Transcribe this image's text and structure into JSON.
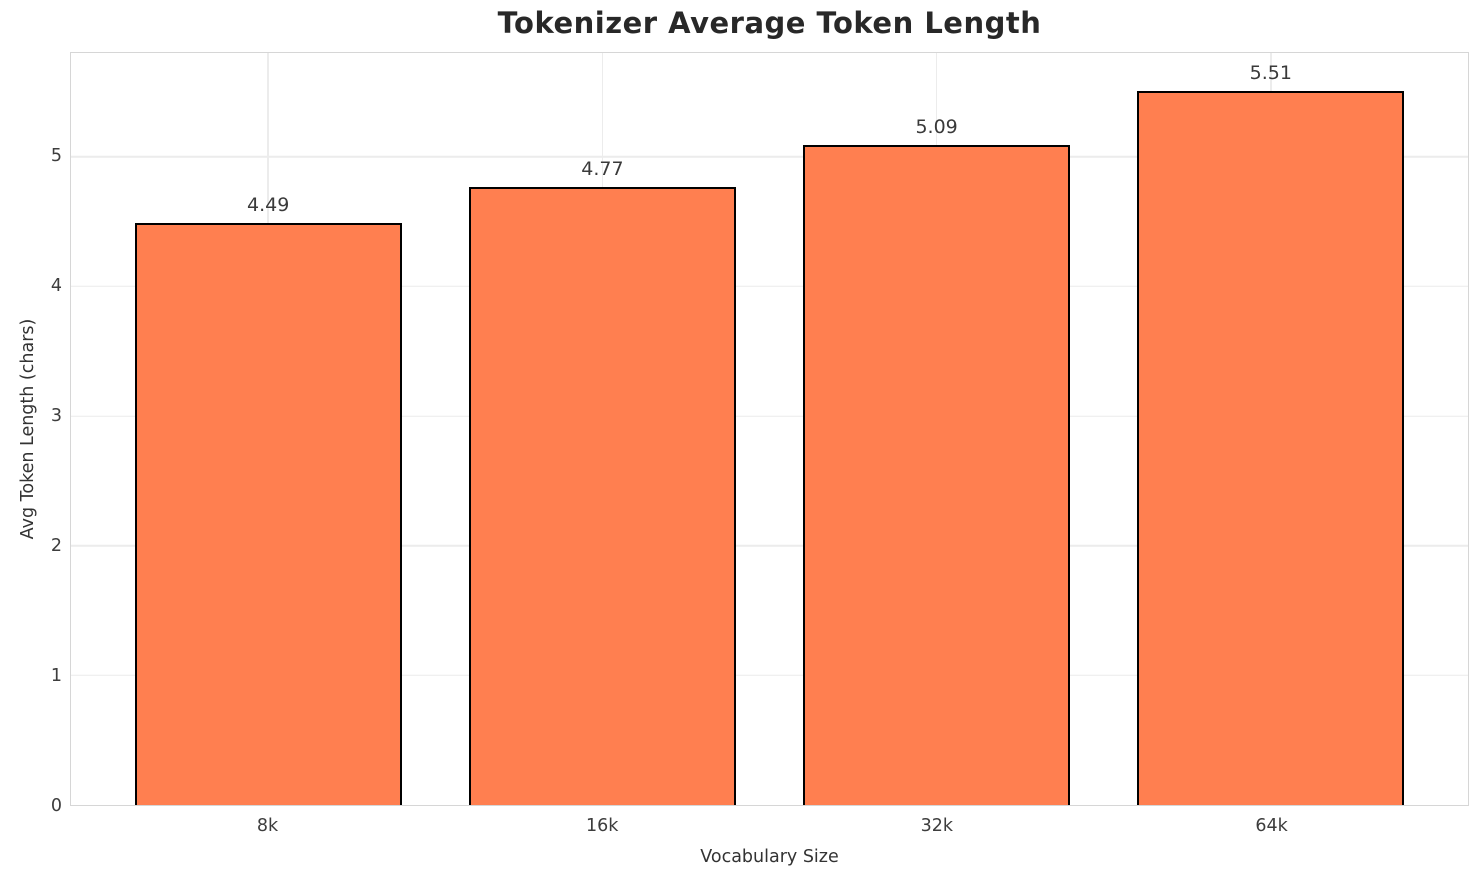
{
  "chart_data": {
    "type": "bar",
    "title": "Tokenizer Average Token Length",
    "xlabel": "Vocabulary Size",
    "ylabel": "Avg Token Length (chars)",
    "categories": [
      "8k",
      "16k",
      "32k",
      "64k"
    ],
    "values": [
      4.49,
      4.77,
      5.09,
      5.51
    ],
    "value_labels": [
      "4.49",
      "4.77",
      "5.09",
      "5.51"
    ],
    "yticks": [
      0,
      1,
      2,
      3,
      4,
      5
    ],
    "ylim": [
      0,
      5.8
    ],
    "grid": true,
    "legend": "none",
    "bar_color": "#FF7F50",
    "bar_edge_color": "#000000",
    "grid_color": "#ececec",
    "spine_color": "#d6d6d6",
    "title_color": "#282828",
    "tick_color": "#3d3d3d"
  }
}
